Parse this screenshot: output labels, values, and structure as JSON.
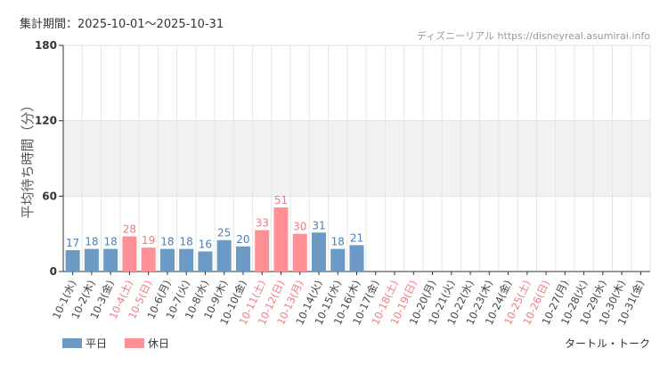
{
  "period": "集計期間：2025-10-01～2025-10-31",
  "credit": "ディズニーリアル https://disneyreal.asumirai.info",
  "attraction": "タートル・トーク",
  "chart_data": {
    "type": "bar",
    "ylabel": "平均待ち時間（分）",
    "ylim": [
      0,
      180
    ],
    "yticks": [
      "0",
      "60",
      "120",
      "180"
    ],
    "grid": true,
    "shaded_band": [
      60,
      120
    ],
    "legend_placement": "bottom-left",
    "categories": [
      "10-1(水)",
      "10-2(木)",
      "10-3(金)",
      "10-4(土)",
      "10-5(日)",
      "10-6(月)",
      "10-7(火)",
      "10-8(水)",
      "10-9(木)",
      "10-10(金)",
      "10-11(土)",
      "10-12(日)",
      "10-13(月)",
      "10-14(火)",
      "10-15(水)",
      "10-16(木)",
      "10-17(金)",
      "10-18(土)",
      "10-19(日)",
      "10-20(月)",
      "10-21(火)",
      "10-22(水)",
      "10-23(木)",
      "10-24(金)",
      "10-25(土)",
      "10-26(日)",
      "10-27(月)",
      "10-28(火)",
      "10-29(水)",
      "10-30(木)",
      "10-31(金)"
    ],
    "values": [
      17,
      18,
      18,
      28,
      19,
      18,
      18,
      16,
      25,
      20,
      33,
      51,
      30,
      31,
      18,
      21,
      null,
      null,
      null,
      null,
      null,
      null,
      null,
      null,
      null,
      null,
      null,
      null,
      null,
      null,
      null
    ],
    "holiday": [
      false,
      false,
      false,
      true,
      true,
      false,
      false,
      false,
      false,
      false,
      true,
      true,
      true,
      false,
      false,
      false,
      false,
      true,
      true,
      false,
      false,
      false,
      false,
      false,
      true,
      true,
      false,
      false,
      false,
      false,
      false
    ],
    "series": [
      {
        "name": "平日",
        "color": "#6b9ac4"
      },
      {
        "name": "休日",
        "color": "#ff9095"
      }
    ],
    "label_colors": {
      "weekday_value": "#4a7fb5",
      "holiday": "#f27a80",
      "weekday_tick": "#444444"
    }
  }
}
